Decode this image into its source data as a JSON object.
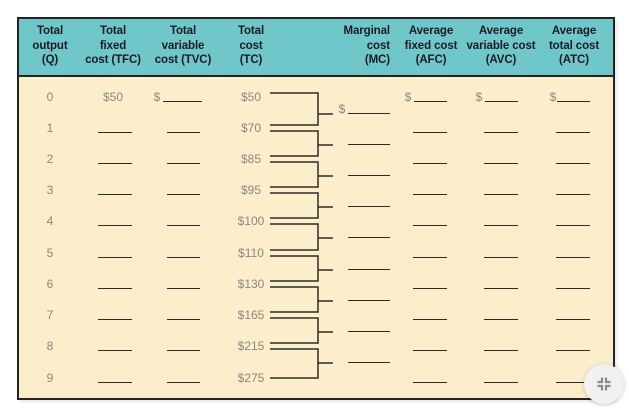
{
  "colors": {
    "header_bg": "#6fc7ca",
    "body_bg": "#fceecb",
    "frame": "#242420",
    "header_text": "#1b1b22",
    "value_text": "#8b8883",
    "rule": "#2b2b28",
    "fab_bg": "#f2f1ef",
    "fab_icon": "#8a8a8a"
  },
  "table": {
    "columns": [
      {
        "id": "q",
        "header_lines": [
          "Total",
          "output",
          "(Q)"
        ]
      },
      {
        "id": "tfc",
        "header_lines": [
          "Total",
          "fixed",
          "cost (TFC)"
        ]
      },
      {
        "id": "tvc",
        "header_lines": [
          "Total",
          "variable",
          "cost (TVC)"
        ]
      },
      {
        "id": "tc",
        "header_lines": [
          "Total",
          "cost",
          "(TC)"
        ]
      },
      {
        "id": "mc",
        "header_lines": [
          "Marginal",
          "cost",
          "(MC)"
        ]
      },
      {
        "id": "afc",
        "header_lines": [
          "Average",
          "fixed cost",
          "(AFC)"
        ]
      },
      {
        "id": "avc",
        "header_lines": [
          "Average",
          "variable cost",
          "(AVC)"
        ]
      },
      {
        "id": "atc",
        "header_lines": [
          "Average",
          "total cost",
          "(ATC)"
        ]
      }
    ],
    "rows": [
      {
        "q": "0",
        "tfc": {
          "value": "$50"
        },
        "tvc": {
          "prefix": "$"
        },
        "tc": {
          "value": "$50"
        },
        "afc": {
          "prefix": "$"
        },
        "avc": {
          "prefix": "$"
        },
        "atc": {
          "prefix": "$"
        }
      },
      {
        "q": "1",
        "tfc": {},
        "tvc": {},
        "tc": {
          "value": "$70"
        },
        "afc": {},
        "avc": {},
        "atc": {}
      },
      {
        "q": "2",
        "tfc": {},
        "tvc": {},
        "tc": {
          "value": "$85"
        },
        "afc": {},
        "avc": {},
        "atc": {}
      },
      {
        "q": "3",
        "tfc": {},
        "tvc": {},
        "tc": {
          "value": "$95"
        },
        "afc": {},
        "avc": {},
        "atc": {}
      },
      {
        "q": "4",
        "tfc": {},
        "tvc": {},
        "tc": {
          "value": "$100"
        },
        "afc": {},
        "avc": {},
        "atc": {}
      },
      {
        "q": "5",
        "tfc": {},
        "tvc": {},
        "tc": {
          "value": "$110"
        },
        "afc": {},
        "avc": {},
        "atc": {}
      },
      {
        "q": "6",
        "tfc": {},
        "tvc": {},
        "tc": {
          "value": "$130"
        },
        "afc": {},
        "avc": {},
        "atc": {}
      },
      {
        "q": "7",
        "tfc": {},
        "tvc": {},
        "tc": {
          "value": "$165"
        },
        "afc": {},
        "avc": {},
        "atc": {}
      },
      {
        "q": "8",
        "tfc": {},
        "tvc": {},
        "tc": {
          "value": "$215"
        },
        "afc": {},
        "avc": {},
        "atc": {}
      },
      {
        "q": "9",
        "tfc": {},
        "tvc": {},
        "tc": {
          "value": "$275"
        },
        "afc": {},
        "avc": {},
        "atc": {}
      }
    ],
    "marginal_cost": {
      "entries": [
        {
          "prefix": "$"
        },
        {},
        {},
        {},
        {},
        {},
        {},
        {},
        {}
      ]
    }
  },
  "fab": {
    "icon": "collapse-fullscreen-icon"
  }
}
